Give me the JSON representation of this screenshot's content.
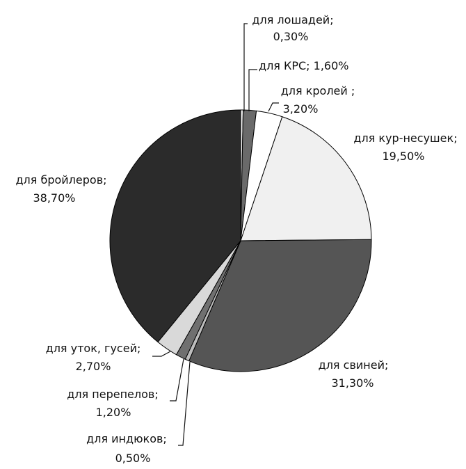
{
  "chart_data": {
    "type": "pie",
    "slices": [
      {
        "name": "для лошадей;",
        "value": 0.3,
        "value_label": "0,30%",
        "color": "#efefef"
      },
      {
        "name": "для КРС;",
        "value": 1.6,
        "value_label": "1,60%",
        "color": "#6a6a6a"
      },
      {
        "name": "для кролей ;",
        "value": 3.2,
        "value_label": "3,20%",
        "color": "#ffffff"
      },
      {
        "name": "для кур-несушек;",
        "value": 19.5,
        "value_label": "19,50%",
        "color": "#f0f0f0"
      },
      {
        "name": "для свиней;",
        "value": 31.3,
        "value_label": "31,30%",
        "color": "#555555"
      },
      {
        "name": "для индюков;",
        "value": 0.5,
        "value_label": "0,50%",
        "color": "#bdbdbd"
      },
      {
        "name": "для перепелов;",
        "value": 1.2,
        "value_label": "1,20%",
        "color": "#707070"
      },
      {
        "name": "для уток, гусей;",
        "value": 2.7,
        "value_label": "2,70%",
        "color": "#d9d9d9"
      },
      {
        "name": "для бройлеров;",
        "value": 38.7,
        "value_label": "38,70%",
        "color": "#2b2b2b"
      }
    ],
    "slice_order": "clockwise from top",
    "legend": "none",
    "labels": "outside with leader lines"
  }
}
